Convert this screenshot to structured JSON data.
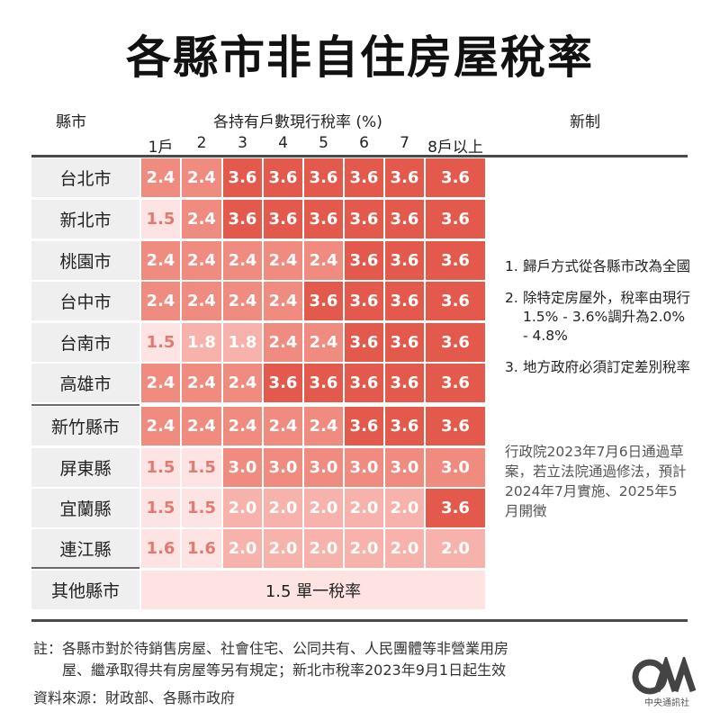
{
  "title": "各縣市非自住房屋稅率",
  "headers": {
    "county": "縣市",
    "rates": "各持有戶數現行稅率 (%)",
    "new_system": "新制"
  },
  "chart_data": {
    "type": "table",
    "title": "各縣市非自住房屋稅率",
    "unit": "%",
    "columns": [
      "1戶",
      "2",
      "3",
      "4",
      "5",
      "6",
      "7",
      "8戶以上"
    ],
    "rows": [
      {
        "county": "台北市",
        "values": [
          "2.4",
          "2.4",
          "3.6",
          "3.6",
          "3.6",
          "3.6",
          "3.6",
          "3.6"
        ]
      },
      {
        "county": "新北市",
        "values": [
          "1.5",
          "2.4",
          "3.6",
          "3.6",
          "3.6",
          "3.6",
          "3.6",
          "3.6"
        ]
      },
      {
        "county": "桃園市",
        "values": [
          "2.4",
          "2.4",
          "2.4",
          "2.4",
          "2.4",
          "3.6",
          "3.6",
          "3.6"
        ]
      },
      {
        "county": "台中市",
        "values": [
          "2.4",
          "2.4",
          "2.4",
          "2.4",
          "3.6",
          "3.6",
          "3.6",
          "3.6"
        ]
      },
      {
        "county": "台南市",
        "values": [
          "1.5",
          "1.8",
          "1.8",
          "2.4",
          "2.4",
          "3.6",
          "3.6",
          "3.6"
        ]
      },
      {
        "county": "高雄市",
        "values": [
          "2.4",
          "2.4",
          "2.4",
          "3.6",
          "3.6",
          "3.6",
          "3.6",
          "3.6"
        ]
      },
      {
        "county": "新竹縣市",
        "values": [
          "2.4",
          "2.4",
          "2.4",
          "2.4",
          "2.4",
          "3.6",
          "3.6",
          "3.6"
        ]
      },
      {
        "county": "屏東縣",
        "values": [
          "1.5",
          "1.5",
          "3.0",
          "3.0",
          "3.0",
          "3.0",
          "3.0",
          "3.0"
        ]
      },
      {
        "county": "宜蘭縣",
        "values": [
          "1.5",
          "1.5",
          "2.0",
          "2.0",
          "2.0",
          "2.0",
          "2.0",
          "3.6"
        ]
      },
      {
        "county": "連江縣",
        "values": [
          "1.6",
          "1.6",
          "2.0",
          "2.0",
          "2.0",
          "2.0",
          "2.0",
          "2.0"
        ]
      }
    ],
    "other": {
      "county": "其他縣市",
      "value": "1.5 單一稅率"
    },
    "colors": {
      "level1": "#fde4e2",
      "level2": "#f7b3ab",
      "level3": "#ef8b7f",
      "level4": "#e35a4c"
    }
  },
  "new_system_notes": [
    {
      "num": "1.",
      "text": "歸戶方式從各縣市改為全國"
    },
    {
      "num": "2.",
      "text": "除特定房屋外，稅率由現行1.5% - 3.6%調升為2.0% - 4.8%"
    },
    {
      "num": "3.",
      "text": "地方政府必須訂定差別稅率"
    }
  ],
  "new_system_status": "行政院2023年7月6日通過草案，若立法院通過修法，預計2024年7月實施、2025年5月開徵",
  "footnote_line1": "註：各縣市對於待銷售房屋、社會住宅、公同共有、人民團體等非營業用房",
  "footnote_line2": "屋、繼承取得共有房屋等另有規定；新北市稅率2023年9月1日起生效",
  "source": "資料來源：財政部、各縣市政府",
  "logo_text": "中央通訊社"
}
